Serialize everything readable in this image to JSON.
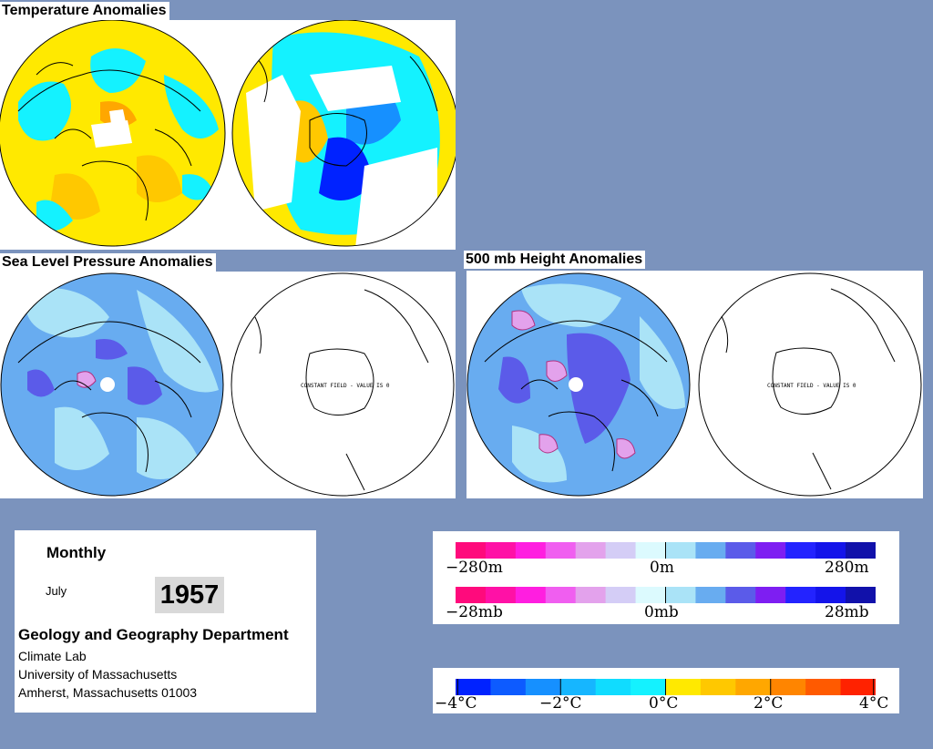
{
  "titles": {
    "temperature": "Temperature Anomalies",
    "slp": "Sea Level Pressure Anomalies",
    "height500": "500 mb Height Anomalies"
  },
  "maps": {
    "slp_south_message": "CONSTANT FIELD - VALUE IS 0",
    "height_south_message": "CONSTANT FIELD - VALUE IS 0"
  },
  "info": {
    "period": "Monthly",
    "month": "July",
    "year": "1957",
    "department": "Geology and Geography Department",
    "lines": [
      "Climate Lab",
      "University of Massachusetts",
      "Amherst, Massachusetts 01003"
    ]
  },
  "legend_anomaly": {
    "colors": [
      "#ff0a7c",
      "#ff11a6",
      "#ff1ee0",
      "#f05ef0",
      "#e3a2ec",
      "#d4cdf6",
      "#dcfafe",
      "#aae3f7",
      "#68acf0",
      "#5b5be9",
      "#7e1ef2",
      "#2323ff",
      "#1414ea",
      "#1111aa"
    ],
    "height_labels": [
      "−280m",
      "0m",
      "280m"
    ],
    "pressure_labels": [
      "−28mb",
      "0mb",
      "28mb"
    ]
  },
  "legend_temp": {
    "colors": [
      "#0022ff",
      "#0d5bff",
      "#1690ff",
      "#16b6ff",
      "#10dcff",
      "#14f2ff",
      "#ffe900",
      "#ffc800",
      "#ffa700",
      "#ff8500",
      "#ff5a00",
      "#ff2200"
    ],
    "labels": [
      "−4°C",
      "−2°C",
      "0°C",
      "2°C",
      "4°C"
    ]
  }
}
